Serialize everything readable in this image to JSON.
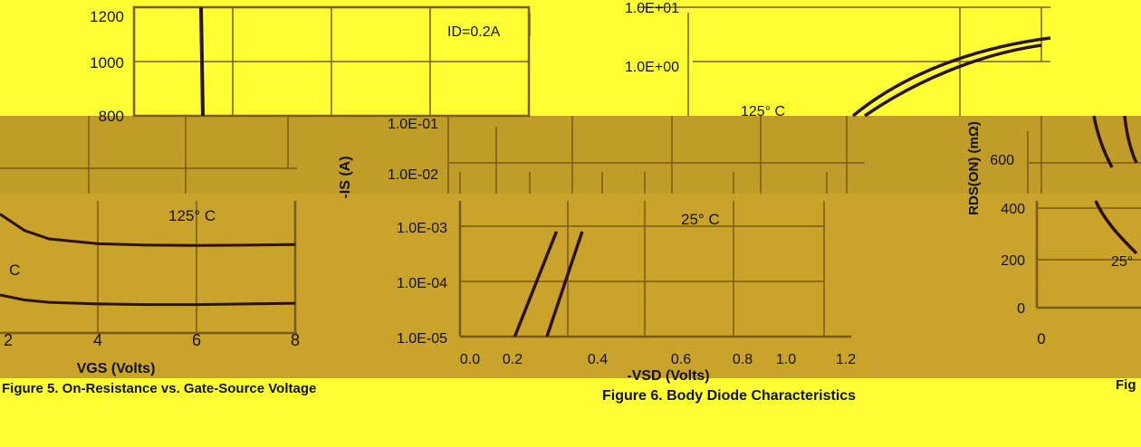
{
  "page": {
    "fig_left_caption": "Figure 5. On-Resistance vs. Gate-Source Voltage",
    "fig_middle_caption": "Figure 6. Body Diode Characteristics",
    "fig_right_caption": "Fig"
  },
  "colors": {
    "background": "#ffff33",
    "band": "#c09c28",
    "band_lower": "#c9a32a",
    "grid": "#7a5a16",
    "curve": "#2a1206",
    "text": "#111111"
  },
  "chart_data": [
    {
      "type": "line",
      "title": "Figure 5. On-Resistance vs. Gate-Source Voltage",
      "xlabel": "VGS (Volts)",
      "ylabel": "",
      "x_ticks": [
        "2",
        "4",
        "6",
        "8"
      ],
      "y_ticks": [
        "800",
        "1000",
        "1200"
      ],
      "annotations": [
        "ID=0.2A",
        "125° C",
        "C"
      ],
      "series": [
        {
          "x": [
            2,
            2.5,
            3,
            4,
            5,
            6,
            7,
            8
          ],
          "y": [
            660,
            610,
            585,
            570,
            566,
            565,
            566,
            568
          ]
        },
        {
          "x": [
            2,
            2.5,
            3,
            4,
            5,
            6,
            7,
            8
          ],
          "y": [
            415,
            400,
            393,
            388,
            386,
            386,
            388,
            390
          ]
        }
      ]
    },
    {
      "type": "line",
      "title": "Figure 6. Body Diode Characteristics",
      "xlabel": "-VSD (Volts)",
      "ylabel": "-IS (A)",
      "x_ticks": [
        "0.0",
        "0.2",
        "0.4",
        "0.6",
        "0.8",
        "1.0",
        "1.2"
      ],
      "y_ticks": [
        "1.0E-05",
        "1.0E-04",
        "1.0E-03",
        "1.0E-02",
        "1.0E-01",
        "1.0E+00",
        "1.0E+01"
      ],
      "annotations": [
        "125° C",
        "25° C"
      ],
      "ylog": true,
      "series": [
        {
          "name": "125° C",
          "x": [
            0.17,
            0.3,
            0.4,
            0.5,
            0.6,
            0.7,
            0.8,
            0.9,
            1.0,
            1.1,
            1.2
          ],
          "y": [
            1e-05,
            0.0008,
            0.03,
            0.2,
            0.6,
            1.3,
            2.2,
            3.2,
            4.2,
            5.1,
            6.0
          ]
        },
        {
          "name": "25° C",
          "x": [
            0.27,
            0.38,
            0.45,
            0.5,
            0.55,
            0.6,
            0.7,
            0.8,
            0.9,
            1.0,
            1.1,
            1.2
          ],
          "y": [
            1e-05,
            0.0008,
            0.012,
            0.08,
            0.28,
            0.6,
            1.4,
            2.4,
            3.5,
            4.6,
            5.6,
            6.5
          ]
        }
      ]
    },
    {
      "type": "line",
      "title": "",
      "xlabel": "",
      "ylabel": "RDS(ON) (mΩ)",
      "x_ticks": [
        "0"
      ],
      "y_ticks": [
        "0",
        "200",
        "400",
        "600"
      ],
      "annotations": [
        "25°"
      ]
    }
  ]
}
